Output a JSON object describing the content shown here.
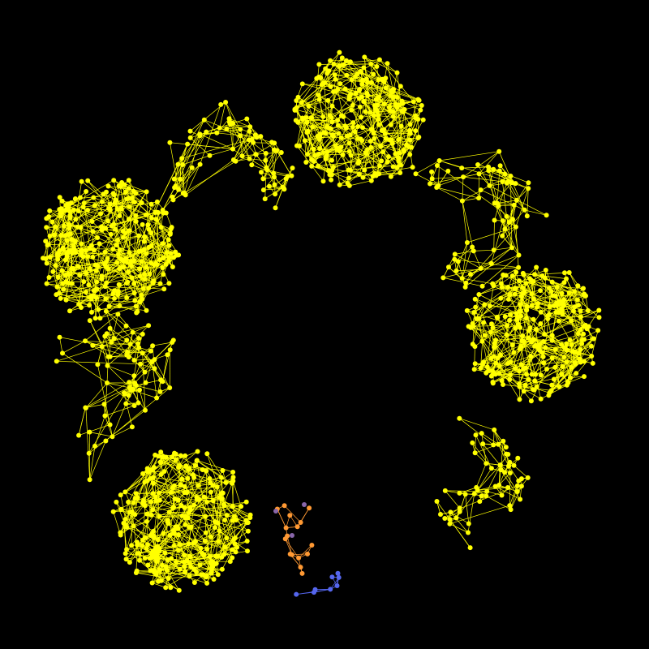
{
  "diagram": {
    "type": "network-graph",
    "background_color": "#000000",
    "colors": {
      "primary": "#ffff00",
      "accent_orange": "#ff9933",
      "accent_purple": "#8866aa",
      "accent_blue": "#5566ee"
    },
    "clusters": [
      {
        "id": "cluster-top-center",
        "nodes": 260,
        "color": "#ffff00"
      },
      {
        "id": "cluster-left",
        "nodes": 300,
        "color": "#ffff00"
      },
      {
        "id": "cluster-right",
        "nodes": 260,
        "color": "#ffff00"
      },
      {
        "id": "cluster-bottom-left",
        "nodes": 280,
        "color": "#ffff00"
      },
      {
        "id": "chain-top-left",
        "nodes": 80,
        "color": "#ffff00"
      },
      {
        "id": "chain-top-right",
        "nodes": 70,
        "color": "#ffff00"
      },
      {
        "id": "chain-left-lower",
        "nodes": 80,
        "color": "#ffff00"
      },
      {
        "id": "chain-right-lower",
        "nodes": 60,
        "color": "#ffff00"
      },
      {
        "id": "tail-orange",
        "nodes": 16,
        "color": "#ff9933"
      },
      {
        "id": "tail-blue",
        "nodes": 8,
        "color": "#5566ee"
      }
    ]
  }
}
